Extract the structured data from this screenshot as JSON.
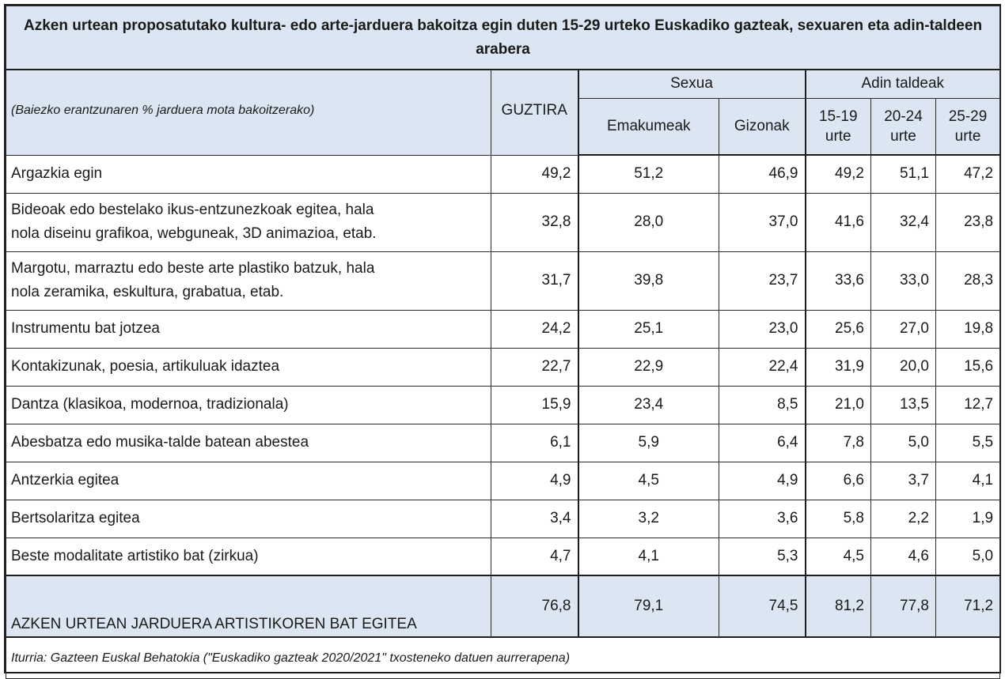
{
  "title": "Azken urtean proposatutako kultura- edo arte-jarduera bakoitza egin duten 15-29 urteko Euskadiko gazteak, sexuaren eta adin-taldeen arabera",
  "header": {
    "note": "(Baiezko erantzunaren % jarduera mota bakoitzerako)",
    "guztira": "GUZTIRA",
    "sexua": "Sexua",
    "adin_taldeak": "Adin taldeak",
    "emakumeak": "Emakumeak",
    "gizonak": "Gizonak",
    "age1_l1": "15-19",
    "age1_l2": "urte",
    "age2_l1": "20-24",
    "age2_l2": "urte",
    "age3_l1": "25-29",
    "age3_l2": "urte"
  },
  "rows": [
    {
      "label": "Argazkia egin",
      "label2": "",
      "guztira": "49,2",
      "emakumeak": "51,2",
      "gizonak": "46,9",
      "a1519": "49,2",
      "a2024": "51,1",
      "a2529": "47,2"
    },
    {
      "label": "Bideoak edo bestelako ikus-entzunezkoak egitea, hala",
      "label2": "nola diseinu grafikoa, webguneak, 3D animazioa, etab.",
      "guztira": "32,8",
      "emakumeak": "28,0",
      "gizonak": "37,0",
      "a1519": "41,6",
      "a2024": "32,4",
      "a2529": "23,8"
    },
    {
      "label": "Margotu, marraztu edo beste arte plastiko batzuk, hala",
      "label2": "nola zeramika, eskultura, grabatua, etab.",
      "guztira": "31,7",
      "emakumeak": "39,8",
      "gizonak": "23,7",
      "a1519": "33,6",
      "a2024": "33,0",
      "a2529": "28,3"
    },
    {
      "label": "Instrumentu bat jotzea",
      "label2": "",
      "guztira": "24,2",
      "emakumeak": "25,1",
      "gizonak": "23,0",
      "a1519": "25,6",
      "a2024": "27,0",
      "a2529": "19,8"
    },
    {
      "label": "Kontakizunak, poesia, artikuluak idaztea",
      "label2": "",
      "guztira": "22,7",
      "emakumeak": "22,9",
      "gizonak": "22,4",
      "a1519": "31,9",
      "a2024": "20,0",
      "a2529": "15,6"
    },
    {
      "label": "Dantza (klasikoa, modernoa, tradizionala)",
      "label2": "",
      "guztira": "15,9",
      "emakumeak": "23,4",
      "gizonak": "8,5",
      "a1519": "21,0",
      "a2024": "13,5",
      "a2529": "12,7"
    },
    {
      "label": "Abesbatza edo musika-talde batean abestea",
      "label2": "",
      "guztira": "6,1",
      "emakumeak": "5,9",
      "gizonak": "6,4",
      "a1519": "7,8",
      "a2024": "5,0",
      "a2529": "5,5"
    },
    {
      "label": "Antzerkia egitea",
      "label2": "",
      "guztira": "4,9",
      "emakumeak": "4,5",
      "gizonak": "4,9",
      "a1519": "6,6",
      "a2024": "3,7",
      "a2529": "4,1"
    },
    {
      "label": "Bertsolaritza egitea",
      "label2": "",
      "guztira": "3,4",
      "emakumeak": "3,2",
      "gizonak": "3,6",
      "a1519": "5,8",
      "a2024": "2,2",
      "a2529": "1,9"
    },
    {
      "label": "Beste modalitate artistiko bat (zirkua)",
      "label2": "",
      "guztira": "4,7",
      "emakumeak": "4,1",
      "gizonak": "5,3",
      "a1519": "4,5",
      "a2024": "4,6",
      "a2529": "5,0"
    }
  ],
  "total": {
    "label": "AZKEN URTEAN JARDUERA ARTISTIKOREN BAT EGITEA",
    "guztira": "76,8",
    "emakumeak": "79,1",
    "gizonak": "74,5",
    "a1519": "81,2",
    "a2024": "77,8",
    "a2529": "71,2"
  },
  "source": "Iturria: Gazteen Euskal Behatokia (\"Euskadiko gazteak 2020/2021\" txosteneko datuen aurrerapena)",
  "colors": {
    "header_bg": "#dce6f2",
    "border": "#1e1e1e"
  }
}
